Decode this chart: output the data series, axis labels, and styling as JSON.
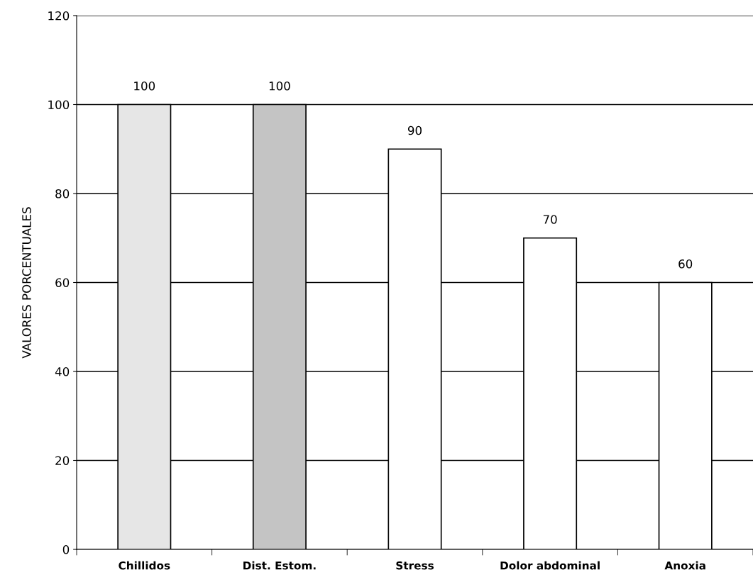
{
  "chart_data": {
    "type": "bar",
    "ylabel": "VALORES PORCENTUALES",
    "categories": [
      "Chillidos",
      "Dist. Estom.",
      "Stress",
      "Dolor abdominal",
      "Anoxia"
    ],
    "values": [
      100,
      100,
      90,
      70,
      60
    ],
    "colors": [
      "#e6e6e6",
      "#c4c4c4",
      "#ffffff",
      "#ffffff",
      "#ffffff"
    ],
    "ylim": [
      0,
      120
    ],
    "yticks": [
      0,
      20,
      40,
      60,
      80,
      100,
      120
    ],
    "grid": "y",
    "data_labels": true
  }
}
